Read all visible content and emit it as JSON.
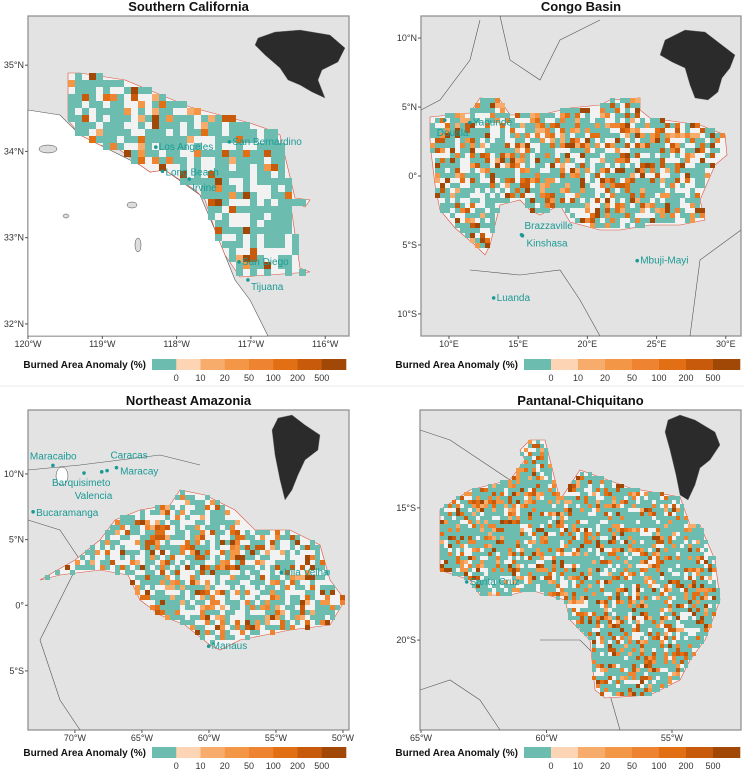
{
  "figure": {
    "legend_title": "Burned Area Anomaly (%)",
    "legend_labels": [
      "0",
      "10",
      "20",
      "50",
      "100",
      "200",
      "500"
    ],
    "legend_colors": [
      "#6cbdb0",
      "#fdd5b4",
      "#f8ac6b",
      "#f39645",
      "#ee8331",
      "#e36f14",
      "#c85b0b",
      "#a24806"
    ],
    "land_color": "#e3e3e3",
    "no_data_color": "#f2f2f2",
    "inset_color": "#2b2b2b",
    "city_color": "#1a9a94",
    "outline_color": "#e0503c"
  },
  "chart_data": [
    {
      "type": "map",
      "title": "Southern California",
      "lon_range": [
        -120.0,
        -115.68
      ],
      "lat_range": [
        31.86,
        35.57
      ],
      "x_ticks": [
        {
          "v": -120,
          "label": "120°W"
        },
        {
          "v": -119,
          "label": "119°W"
        },
        {
          "v": -118,
          "label": "118°W"
        },
        {
          "v": -117,
          "label": "117°W"
        },
        {
          "v": -116,
          "label": "116°W"
        }
      ],
      "y_ticks": [
        {
          "v": 35,
          "label": "35°N"
        },
        {
          "v": 34,
          "label": "34°N"
        },
        {
          "v": 33,
          "label": "33°N"
        },
        {
          "v": 32,
          "label": "32°N"
        }
      ],
      "cities": [
        {
          "name": "Los Angeles",
          "lon": -118.28,
          "lat": 34.05
        },
        {
          "name": "San Bernardino",
          "lon": -117.29,
          "lat": 34.11
        },
        {
          "name": "Long Beach",
          "lon": -118.19,
          "lat": 33.77
        },
        {
          "name": "Irvine",
          "lon": -117.83,
          "lat": 33.68
        },
        {
          "name": "San Diego",
          "lon": -117.16,
          "lat": 32.72
        },
        {
          "name": "Tijuana",
          "lon": -117.04,
          "lat": 32.51
        }
      ],
      "inset": "North America"
    },
    {
      "type": "map",
      "title": "Congo Basin",
      "lon_range": [
        7.98,
        31.1
      ],
      "lat_range": [
        -11.6,
        11.6
      ],
      "x_ticks": [
        {
          "v": 10,
          "label": "10°E"
        },
        {
          "v": 15,
          "label": "15°E"
        },
        {
          "v": 20,
          "label": "20°E"
        },
        {
          "v": 25,
          "label": "25°E"
        },
        {
          "v": 30,
          "label": "30°E"
        }
      ],
      "y_ticks": [
        {
          "v": 10,
          "label": "10°N"
        },
        {
          "v": 5,
          "label": "5°N"
        },
        {
          "v": 0,
          "label": "0°"
        },
        {
          "v": -5,
          "label": "5°S"
        },
        {
          "v": -10,
          "label": "10°S"
        }
      ],
      "cities": [
        {
          "name": "Douala",
          "lon": 9.7,
          "lat": 4.05
        },
        {
          "name": "Yaoundé",
          "lon": 11.5,
          "lat": 3.87
        },
        {
          "name": "Brazzaville",
          "lon": 15.24,
          "lat": -4.26
        },
        {
          "name": "Kinshasa",
          "lon": 15.31,
          "lat": -4.33
        },
        {
          "name": "Mbuji-Mayi",
          "lon": 23.6,
          "lat": -6.14
        },
        {
          "name": "Luanda",
          "lon": 13.23,
          "lat": -8.84
        }
      ],
      "inset": "Africa"
    },
    {
      "type": "map",
      "title": "Northeast Amazonia",
      "lon_range": [
        -73.5,
        -49.55
      ],
      "lat_range": [
        -9.5,
        14.87
      ],
      "x_ticks": [
        {
          "v": -70,
          "label": "70°W"
        },
        {
          "v": -65,
          "label": "65°W"
        },
        {
          "v": -60,
          "label": "60°W"
        },
        {
          "v": -55,
          "label": "55°W"
        },
        {
          "v": -50,
          "label": "50°W"
        }
      ],
      "y_ticks": [
        {
          "v": 10,
          "label": "10°N"
        },
        {
          "v": 5,
          "label": "5°N"
        },
        {
          "v": 0,
          "label": "0°"
        },
        {
          "v": -5,
          "label": "5°S"
        }
      ],
      "cities": [
        {
          "name": "Maracaibo",
          "lon": -71.64,
          "lat": 10.65
        },
        {
          "name": "Caracas",
          "lon": -66.9,
          "lat": 10.48
        },
        {
          "name": "Barquisimeto",
          "lon": -69.32,
          "lat": 10.07
        },
        {
          "name": "Maracay",
          "lon": -67.6,
          "lat": 10.25
        },
        {
          "name": "Valencia",
          "lon": -68.0,
          "lat": 10.16
        },
        {
          "name": "Bucaramanga",
          "lon": -73.12,
          "lat": 7.12
        },
        {
          "name": "Vila Velha",
          "lon": -54.6,
          "lat": 2.5
        },
        {
          "name": "Manaus",
          "lon": -60.02,
          "lat": -3.12
        }
      ],
      "inset": "South America"
    },
    {
      "type": "map",
      "title": "Pantanal-Chiquitano",
      "lon_range": [
        -65.04,
        -52.25
      ],
      "lat_range": [
        -23.4,
        -11.3
      ],
      "x_ticks": [
        {
          "v": -65,
          "label": "65°W"
        },
        {
          "v": -60,
          "label": "60°W"
        },
        {
          "v": -55,
          "label": "55°W"
        }
      ],
      "y_ticks": [
        {
          "v": -15,
          "label": "15°S"
        },
        {
          "v": -20,
          "label": "20°S"
        }
      ],
      "cities": [
        {
          "name": "Santa Cruz",
          "lon": -63.18,
          "lat": -17.8
        }
      ],
      "inset": "South America"
    }
  ]
}
